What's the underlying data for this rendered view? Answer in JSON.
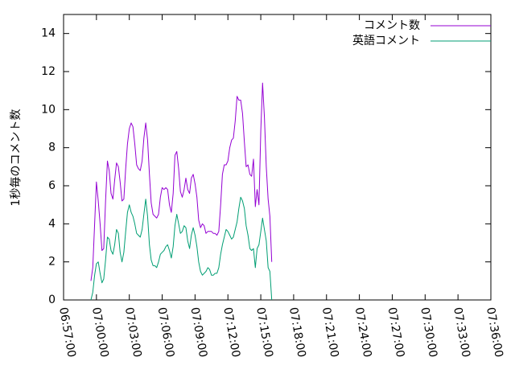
{
  "chart_data": {
    "type": "line",
    "title": "",
    "xlabel": "",
    "ylabel": "1秒毎のコメント数",
    "ylim": [
      0,
      15
    ],
    "yticks": [
      0,
      2,
      4,
      6,
      8,
      10,
      12,
      14
    ],
    "xlim": [
      "06:57:00",
      "07:36:00"
    ],
    "xticks": [
      "06:57:00",
      "07:00:00",
      "07:03:00",
      "07:06:00",
      "07:09:00",
      "07:12:00",
      "07:15:00",
      "07:18:00",
      "07:21:00",
      "07:24:00",
      "07:27:00",
      "07:30:00",
      "07:33:00",
      "07:36:00"
    ],
    "grid": false,
    "legend_position": "top-right",
    "series": [
      {
        "name": "コメント数",
        "color": "#9400d3",
        "points": [
          [
            "06:59:30",
            1.0
          ],
          [
            "06:59:40",
            1.7
          ],
          [
            "06:59:50",
            4.0
          ],
          [
            "07:00:00",
            6.2
          ],
          [
            "07:00:10",
            5.2
          ],
          [
            "07:00:20",
            4.0
          ],
          [
            "07:00:30",
            2.6
          ],
          [
            "07:00:40",
            2.7
          ],
          [
            "07:00:50",
            5.2
          ],
          [
            "07:01:00",
            7.3
          ],
          [
            "07:01:10",
            6.8
          ],
          [
            "07:01:20",
            5.6
          ],
          [
            "07:01:30",
            5.3
          ],
          [
            "07:01:40",
            6.3
          ],
          [
            "07:01:50",
            7.2
          ],
          [
            "07:02:00",
            7.0
          ],
          [
            "07:02:10",
            6.2
          ],
          [
            "07:02:20",
            5.2
          ],
          [
            "07:02:30",
            5.3
          ],
          [
            "07:02:40",
            6.9
          ],
          [
            "07:02:50",
            8.2
          ],
          [
            "07:03:00",
            9.0
          ],
          [
            "07:03:10",
            9.3
          ],
          [
            "07:03:20",
            9.1
          ],
          [
            "07:03:30",
            8.2
          ],
          [
            "07:03:40",
            7.1
          ],
          [
            "07:03:50",
            6.9
          ],
          [
            "07:04:00",
            6.8
          ],
          [
            "07:04:10",
            7.3
          ],
          [
            "07:04:20",
            8.5
          ],
          [
            "07:04:30",
            9.3
          ],
          [
            "07:04:40",
            8.4
          ],
          [
            "07:04:50",
            6.6
          ],
          [
            "07:05:00",
            5.1
          ],
          [
            "07:05:10",
            4.5
          ],
          [
            "07:05:20",
            4.4
          ],
          [
            "07:05:30",
            4.3
          ],
          [
            "07:05:40",
            4.5
          ],
          [
            "07:05:50",
            5.4
          ],
          [
            "07:06:00",
            5.9
          ],
          [
            "07:06:10",
            5.8
          ],
          [
            "07:06:20",
            5.9
          ],
          [
            "07:06:30",
            5.8
          ],
          [
            "07:06:40",
            5.0
          ],
          [
            "07:06:50",
            4.6
          ],
          [
            "07:07:00",
            5.6
          ],
          [
            "07:07:10",
            7.6
          ],
          [
            "07:07:20",
            7.8
          ],
          [
            "07:07:30",
            6.9
          ],
          [
            "07:07:40",
            5.7
          ],
          [
            "07:07:50",
            5.4
          ],
          [
            "07:08:00",
            5.8
          ],
          [
            "07:08:10",
            6.4
          ],
          [
            "07:08:20",
            5.8
          ],
          [
            "07:08:30",
            5.6
          ],
          [
            "07:08:40",
            6.4
          ],
          [
            "07:08:50",
            6.6
          ],
          [
            "07:09:00",
            6.1
          ],
          [
            "07:09:10",
            5.4
          ],
          [
            "07:09:20",
            4.2
          ],
          [
            "07:09:30",
            3.8
          ],
          [
            "07:09:40",
            4.0
          ],
          [
            "07:09:50",
            3.9
          ],
          [
            "07:10:00",
            3.5
          ],
          [
            "07:10:10",
            3.6
          ],
          [
            "07:10:20",
            3.6
          ],
          [
            "07:10:30",
            3.6
          ],
          [
            "07:10:40",
            3.5
          ],
          [
            "07:10:50",
            3.5
          ],
          [
            "07:11:00",
            3.4
          ],
          [
            "07:11:10",
            3.6
          ],
          [
            "07:11:20",
            5.0
          ],
          [
            "07:11:30",
            6.6
          ],
          [
            "07:11:40",
            7.1
          ],
          [
            "07:11:50",
            7.1
          ],
          [
            "07:12:00",
            7.3
          ],
          [
            "07:12:10",
            8.0
          ],
          [
            "07:12:20",
            8.4
          ],
          [
            "07:12:30",
            8.5
          ],
          [
            "07:12:40",
            9.4
          ],
          [
            "07:12:50",
            10.7
          ],
          [
            "07:13:00",
            10.5
          ],
          [
            "07:13:10",
            10.5
          ],
          [
            "07:13:20",
            9.8
          ],
          [
            "07:13:30",
            8.3
          ],
          [
            "07:13:40",
            7.0
          ],
          [
            "07:13:50",
            7.1
          ],
          [
            "07:14:00",
            6.6
          ],
          [
            "07:14:10",
            6.5
          ],
          [
            "07:14:20",
            7.4
          ],
          [
            "07:14:30",
            4.9
          ],
          [
            "07:14:40",
            5.8
          ],
          [
            "07:14:50",
            5.0
          ],
          [
            "07:15:00",
            8.9
          ],
          [
            "07:15:10",
            11.4
          ],
          [
            "07:15:20",
            9.6
          ],
          [
            "07:15:30",
            7.0
          ],
          [
            "07:15:40",
            5.3
          ],
          [
            "07:15:50",
            4.4
          ],
          [
            "07:16:00",
            2.0
          ]
        ]
      },
      {
        "name": "英語コメント",
        "color": "#009e73",
        "points": [
          [
            "06:59:30",
            0.0
          ],
          [
            "06:59:40",
            0.4
          ],
          [
            "06:59:50",
            1.3
          ],
          [
            "07:00:00",
            1.9
          ],
          [
            "07:00:10",
            2.0
          ],
          [
            "07:00:20",
            1.4
          ],
          [
            "07:00:30",
            0.9
          ],
          [
            "07:00:40",
            1.1
          ],
          [
            "07:00:50",
            2.1
          ],
          [
            "07:01:00",
            3.3
          ],
          [
            "07:01:10",
            3.2
          ],
          [
            "07:01:20",
            2.6
          ],
          [
            "07:01:30",
            2.4
          ],
          [
            "07:01:40",
            2.9
          ],
          [
            "07:01:50",
            3.7
          ],
          [
            "07:02:00",
            3.5
          ],
          [
            "07:02:10",
            2.5
          ],
          [
            "07:02:20",
            2.0
          ],
          [
            "07:02:30",
            2.5
          ],
          [
            "07:02:40",
            3.6
          ],
          [
            "07:02:50",
            4.6
          ],
          [
            "07:03:00",
            5.0
          ],
          [
            "07:03:10",
            4.6
          ],
          [
            "07:03:20",
            4.4
          ],
          [
            "07:03:30",
            4.0
          ],
          [
            "07:03:40",
            3.5
          ],
          [
            "07:03:50",
            3.4
          ],
          [
            "07:04:00",
            3.3
          ],
          [
            "07:04:10",
            3.7
          ],
          [
            "07:04:20",
            4.5
          ],
          [
            "07:04:30",
            5.3
          ],
          [
            "07:04:40",
            4.4
          ],
          [
            "07:04:50",
            2.9
          ],
          [
            "07:05:00",
            2.1
          ],
          [
            "07:05:10",
            1.8
          ],
          [
            "07:05:20",
            1.8
          ],
          [
            "07:05:30",
            1.7
          ],
          [
            "07:05:40",
            2.0
          ],
          [
            "07:05:50",
            2.4
          ],
          [
            "07:06:00",
            2.5
          ],
          [
            "07:06:10",
            2.6
          ],
          [
            "07:06:20",
            2.8
          ],
          [
            "07:06:30",
            2.9
          ],
          [
            "07:06:40",
            2.6
          ],
          [
            "07:06:50",
            2.2
          ],
          [
            "07:07:00",
            2.8
          ],
          [
            "07:07:10",
            3.9
          ],
          [
            "07:07:20",
            4.5
          ],
          [
            "07:07:30",
            4.0
          ],
          [
            "07:07:40",
            3.5
          ],
          [
            "07:07:50",
            3.6
          ],
          [
            "07:08:00",
            3.9
          ],
          [
            "07:08:10",
            3.8
          ],
          [
            "07:08:20",
            3.1
          ],
          [
            "07:08:30",
            2.7
          ],
          [
            "07:08:40",
            3.4
          ],
          [
            "07:08:50",
            3.8
          ],
          [
            "07:09:00",
            3.4
          ],
          [
            "07:09:10",
            2.8
          ],
          [
            "07:09:20",
            2.0
          ],
          [
            "07:09:30",
            1.5
          ],
          [
            "07:09:40",
            1.3
          ],
          [
            "07:09:50",
            1.4
          ],
          [
            "07:10:00",
            1.5
          ],
          [
            "07:10:10",
            1.7
          ],
          [
            "07:10:20",
            1.6
          ],
          [
            "07:10:30",
            1.3
          ],
          [
            "07:10:40",
            1.3
          ],
          [
            "07:10:50",
            1.4
          ],
          [
            "07:11:00",
            1.4
          ],
          [
            "07:11:10",
            1.7
          ],
          [
            "07:11:20",
            2.4
          ],
          [
            "07:11:30",
            2.9
          ],
          [
            "07:11:40",
            3.3
          ],
          [
            "07:11:50",
            3.7
          ],
          [
            "07:12:00",
            3.6
          ],
          [
            "07:12:10",
            3.4
          ],
          [
            "07:12:20",
            3.2
          ],
          [
            "07:12:30",
            3.3
          ],
          [
            "07:12:40",
            3.7
          ],
          [
            "07:12:50",
            4.1
          ],
          [
            "07:13:00",
            4.8
          ],
          [
            "07:13:10",
            5.4
          ],
          [
            "07:13:20",
            5.2
          ],
          [
            "07:13:30",
            4.8
          ],
          [
            "07:13:40",
            3.9
          ],
          [
            "07:13:50",
            3.4
          ],
          [
            "07:14:00",
            2.7
          ],
          [
            "07:14:10",
            2.6
          ],
          [
            "07:14:20",
            2.7
          ],
          [
            "07:14:30",
            1.7
          ],
          [
            "07:14:40",
            2.7
          ],
          [
            "07:14:50",
            2.9
          ],
          [
            "07:15:00",
            3.6
          ],
          [
            "07:15:10",
            4.3
          ],
          [
            "07:15:20",
            3.7
          ],
          [
            "07:15:30",
            3.1
          ],
          [
            "07:15:40",
            1.7
          ],
          [
            "07:15:50",
            1.5
          ],
          [
            "07:16:00",
            0.0
          ]
        ]
      }
    ]
  }
}
